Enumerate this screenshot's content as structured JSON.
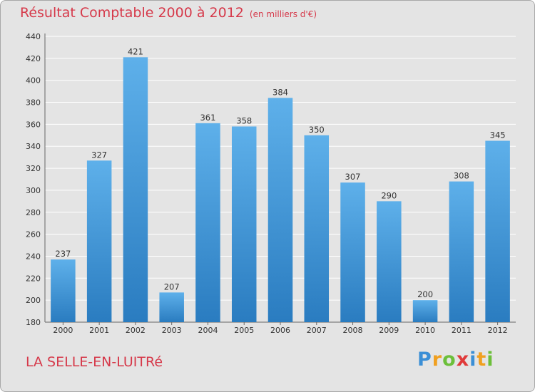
{
  "title": "Résultat Comptable 2000 à 2012",
  "unit_note": "(en milliers d'€)",
  "commune": "LA SELLE-EN-LUITRé",
  "logo": {
    "letters": [
      "P",
      "r",
      "o",
      "x",
      "i",
      "t",
      "i"
    ],
    "colors": [
      "#3b8fd6",
      "#f0a020",
      "#6cbf3a",
      "#e03a3a",
      "#3b8fd6",
      "#f0a020",
      "#6cbf3a"
    ]
  },
  "colors": {
    "bar_light": "#5eb0ea",
    "bar_dark": "#2a7cc0",
    "grid": "#ffffff",
    "title": "#d6394a",
    "background": "#e4e4e4"
  },
  "chart_data": {
    "type": "bar",
    "title": "Résultat Comptable 2000 à 2012",
    "xlabel": "",
    "ylabel": "",
    "categories": [
      "2000",
      "2001",
      "2002",
      "2003",
      "2004",
      "2005",
      "2006",
      "2007",
      "2008",
      "2009",
      "2010",
      "2011",
      "2012"
    ],
    "values": [
      237,
      327,
      421,
      207,
      361,
      358,
      384,
      350,
      307,
      290,
      200,
      308,
      345
    ],
    "ylim": [
      180,
      440
    ],
    "yticks": [
      180,
      200,
      220,
      240,
      260,
      280,
      300,
      320,
      340,
      360,
      380,
      400,
      420,
      440
    ],
    "grid": true
  }
}
